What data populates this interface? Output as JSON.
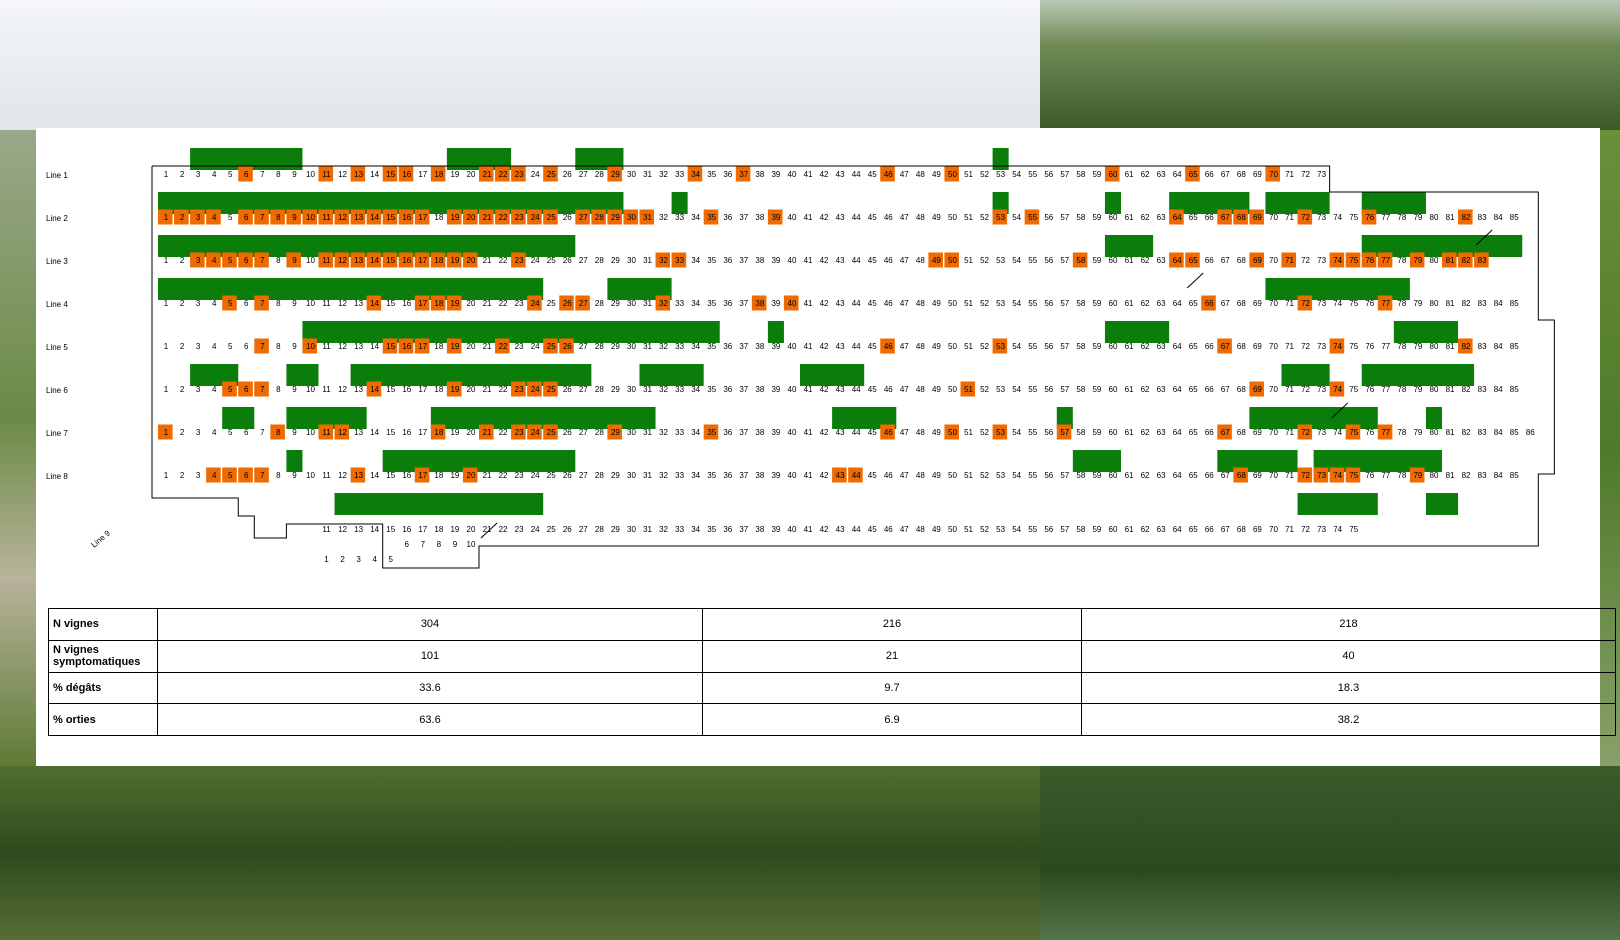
{
  "rows": [
    {
      "label": "Line 1",
      "start": 1,
      "end": 73,
      "orange": [
        6,
        11,
        13,
        15,
        16,
        18,
        21,
        22,
        23,
        25,
        29,
        34,
        37,
        46,
        50,
        60,
        65,
        70
      ]
    },
    {
      "label": "Line 2",
      "start": 1,
      "end": 85,
      "orange": [
        1,
        2,
        3,
        4,
        6,
        7,
        8,
        9,
        10,
        11,
        12,
        13,
        14,
        15,
        16,
        17,
        19,
        20,
        21,
        22,
        23,
        24,
        25,
        27,
        28,
        29,
        30,
        31,
        35,
        39,
        53,
        55,
        64,
        67,
        68,
        69,
        72,
        76,
        82
      ]
    },
    {
      "label": "Line 3",
      "start": 1,
      "end": 83,
      "orange": [
        3,
        4,
        5,
        6,
        7,
        9,
        11,
        12,
        13,
        14,
        15,
        16,
        17,
        18,
        19,
        20,
        23,
        32,
        33,
        49,
        50,
        58,
        64,
        65,
        69,
        71,
        74,
        75,
        76,
        77,
        79,
        81,
        82,
        83
      ]
    },
    {
      "label": "Line 4",
      "start": 1,
      "end": 85,
      "orange": [
        5,
        7,
        14,
        17,
        18,
        19,
        24,
        26,
        27,
        32,
        38,
        40,
        66,
        72,
        77
      ]
    },
    {
      "label": "Line 5",
      "start": 1,
      "end": 85,
      "orange": [
        7,
        10,
        15,
        16,
        17,
        19,
        22,
        25,
        26,
        46,
        53,
        67,
        74,
        82
      ]
    },
    {
      "label": "Line 6",
      "start": 1,
      "end": 85,
      "orange": [
        5,
        6,
        7,
        14,
        19,
        23,
        24,
        25,
        51,
        69,
        74
      ]
    },
    {
      "label": "Line 7",
      "start": 1,
      "end": 86,
      "orange": [
        1,
        8,
        11,
        12,
        18,
        21,
        23,
        24,
        25,
        29,
        35,
        46,
        50,
        53,
        57,
        67,
        72,
        75,
        77
      ]
    },
    {
      "label": "Line 8",
      "start": 1,
      "end": 85,
      "orange": [
        4,
        5,
        6,
        7,
        13,
        17,
        20,
        43,
        44,
        68,
        72,
        73,
        74,
        75,
        79
      ]
    }
  ],
  "line9": {
    "label": "Line 9",
    "row_a": [
      "1",
      "2",
      "3",
      "4",
      "5"
    ],
    "row_b": [
      "6",
      "7",
      "8",
      "9",
      "10"
    ],
    "row_c_start": 11,
    "row_c_end": 75
  },
  "colors": {
    "orange": "#ef6a00",
    "green": "#0b7d0b",
    "white": "#ffffff"
  },
  "summary": [
    {
      "label": "N vignes",
      "values": [
        "304",
        "216",
        "218"
      ]
    },
    {
      "label": "N vignes symptomatiques",
      "values": [
        "101",
        "21",
        "40"
      ]
    },
    {
      "label": "% dégâts",
      "values": [
        "33.6",
        "9.7",
        "18.3"
      ]
    },
    {
      "label": "% orties",
      "values": [
        "63.6",
        "6.9",
        "38.2"
      ]
    }
  ]
}
